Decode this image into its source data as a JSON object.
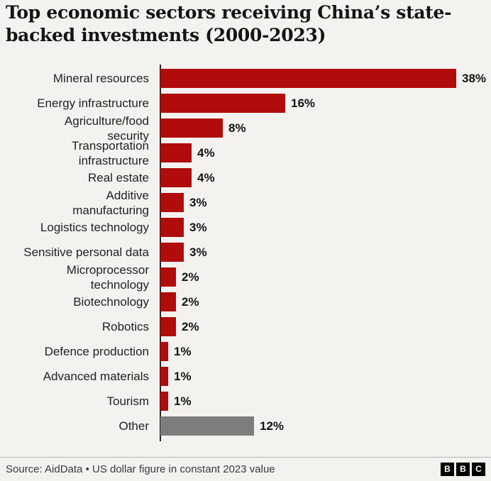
{
  "page": {
    "background_color": "#f3f2ef"
  },
  "header": {
    "title_lines": [
      "Top economic sectors receiving China’s state-",
      "backed investments (2000-2023)"
    ]
  },
  "chart_data": {
    "type": "bar",
    "orientation": "horizontal",
    "title": "Top economic sectors receiving China’s state-backed investments (2000-2023)",
    "unit": "%",
    "xlim": [
      0,
      40
    ],
    "grid": false,
    "legend": "none",
    "categories": [
      "Mineral resources",
      "Energy infrastructure",
      "Agriculture/food security",
      "Transportation infrastructure",
      "Real estate",
      "Additive manufacturing",
      "Logistics technology",
      "Sensitive personal data",
      "Microprocessor technology",
      "Biotechnology",
      "Robotics",
      "Defence production",
      "Advanced materials",
      "Tourism",
      "Other"
    ],
    "display_labels": [
      "Mineral resources",
      "Energy infrastructure",
      "Agriculture/food\nsecurity",
      "Transportation\ninfrastructure",
      "Real estate",
      "Additive\nmanufacturing",
      "Logistics technology",
      "Sensitive personal data",
      "Microprocessor\ntechnology",
      "Biotechnology",
      "Robotics",
      "Defence production",
      "Advanced materials",
      "Tourism",
      "Other"
    ],
    "values": [
      38,
      16,
      8,
      4,
      4,
      3,
      3,
      3,
      2,
      2,
      2,
      1,
      1,
      1,
      12
    ],
    "value_labels": [
      "38%",
      "16%",
      "8%",
      "4%",
      "4%",
      "3%",
      "3%",
      "3%",
      "2%",
      "2%",
      "2%",
      "1%",
      "1%",
      "1%",
      "12%"
    ],
    "bar_colors": [
      "#b00c0c",
      "#b00c0c",
      "#b00c0c",
      "#b00c0c",
      "#b00c0c",
      "#b00c0c",
      "#b00c0c",
      "#b00c0c",
      "#b00c0c",
      "#b00c0c",
      "#b00c0c",
      "#b00c0c",
      "#b00c0c",
      "#b00c0c",
      "#7d7d7d"
    ],
    "primary_color": "#b00c0c",
    "other_color": "#7d7d7d"
  },
  "footer": {
    "source": "Source: AidData • US dollar figure in constant 2023 value",
    "logo_letters": [
      "B",
      "B",
      "C"
    ]
  }
}
